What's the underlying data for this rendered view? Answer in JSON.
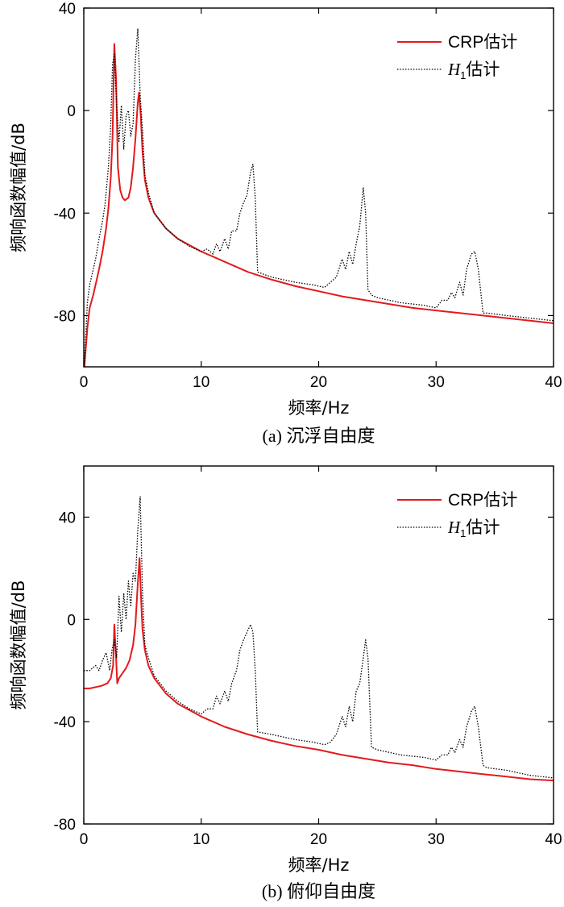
{
  "chart_data": [
    {
      "type": "line",
      "caption": "(a) 沉浮自由度",
      "xlabel": "频率/Hz",
      "ylabel": "频响函数幅值/dB",
      "xlim": [
        0,
        40
      ],
      "ylim": [
        -100,
        40
      ],
      "xticks": [
        0,
        10,
        20,
        30,
        40
      ],
      "yticks": [
        -80,
        -40,
        0,
        40
      ],
      "legend": "top-right",
      "series": [
        {
          "name": "CRP估计",
          "color": "#e31a1c",
          "style": "solid",
          "x": [
            0.05,
            0.3,
            0.5,
            0.8,
            1.0,
            1.3,
            1.6,
            1.9,
            2.1,
            2.3,
            2.45,
            2.6,
            2.75,
            2.9,
            3.1,
            3.3,
            3.5,
            3.8,
            4.0,
            4.2,
            4.4,
            4.6,
            4.7,
            4.85,
            5.0,
            5.2,
            5.5,
            6.0,
            7.0,
            8.0,
            10.0,
            12.0,
            14.0,
            16.0,
            18.0,
            20.0,
            22.0,
            24.0,
            26.0,
            28.0,
            30.0,
            32.0,
            34.0,
            36.0,
            38.0,
            40.0
          ],
          "y": [
            -100,
            -85,
            -77,
            -72,
            -68,
            -62,
            -55,
            -46,
            -38,
            -26,
            -10,
            26,
            12,
            -22,
            -31,
            -34,
            -35,
            -34,
            -30,
            -22,
            -11,
            3,
            7,
            -2,
            -16,
            -27,
            -34,
            -40,
            -46,
            -50,
            -55,
            -59,
            -63,
            -66,
            -68.5,
            -70.5,
            -72.5,
            -74,
            -75.5,
            -77,
            -78,
            -79,
            -80,
            -81,
            -82,
            -83
          ]
        },
        {
          "name": "H1估计",
          "color": "#000000",
          "style": "dotted",
          "x": [
            0.05,
            0.3,
            0.5,
            0.8,
            1.0,
            1.3,
            1.6,
            1.8,
            2.1,
            2.3,
            2.45,
            2.6,
            2.8,
            3.0,
            3.2,
            3.4,
            3.6,
            3.8,
            4.0,
            4.2,
            4.4,
            4.6,
            4.8,
            5.0,
            5.2,
            5.5,
            6.0,
            7.0,
            8.0,
            9.0,
            10.0,
            10.5,
            11.0,
            11.3,
            11.6,
            12.0,
            12.3,
            12.6,
            13.0,
            13.3,
            13.6,
            13.9,
            14.2,
            14.4,
            14.6,
            14.8,
            16.0,
            18.0,
            19.5,
            20.5,
            21.0,
            21.5,
            22.0,
            22.3,
            22.6,
            22.9,
            23.2,
            23.5,
            23.8,
            24.0,
            24.2,
            24.5,
            25.0,
            27.0,
            29.0,
            30.0,
            30.5,
            31.0,
            31.3,
            31.6,
            32.0,
            32.3,
            32.6,
            33.0,
            33.3,
            33.6,
            34.0,
            34.3,
            36.0,
            38.0,
            40.0
          ],
          "y": [
            -100,
            -75,
            -68,
            -62,
            -58,
            -50,
            -43,
            -37,
            -22,
            -5,
            18,
            22,
            2,
            -12,
            2,
            -15,
            -2,
            0,
            -10,
            -5,
            20,
            32,
            6,
            -8,
            -25,
            -32,
            -40,
            -46,
            -50,
            -53,
            -55,
            -54,
            -56,
            -52,
            -55,
            -50,
            -54,
            -47,
            -47,
            -40,
            -36,
            -33,
            -24,
            -21,
            -34,
            -63,
            -65,
            -67,
            -68,
            -69,
            -67,
            -65,
            -58,
            -62,
            -55,
            -60,
            -52,
            -45,
            -30,
            -40,
            -70,
            -72,
            -73,
            -75,
            -76,
            -77,
            -74,
            -74,
            -71,
            -73,
            -67,
            -72,
            -62,
            -56,
            -55,
            -62,
            -79,
            -79,
            -80,
            -81,
            -82
          ]
        }
      ]
    },
    {
      "type": "line",
      "caption": "(b) 俯仰自由度",
      "xlabel": "频率/Hz",
      "ylabel": "频响函数幅值/dB",
      "xlim": [
        0,
        40
      ],
      "ylim": [
        -80,
        60
      ],
      "xticks": [
        0,
        10,
        20,
        30,
        40
      ],
      "yticks": [
        -80,
        -40,
        0,
        40
      ],
      "legend": "top-right",
      "series": [
        {
          "name": "CRP估计",
          "color": "#e31a1c",
          "style": "solid",
          "x": [
            0.0,
            0.5,
            1.0,
            1.5,
            2.0,
            2.3,
            2.5,
            2.6,
            2.75,
            2.85,
            3.0,
            3.3,
            3.6,
            3.9,
            4.2,
            4.4,
            4.6,
            4.75,
            4.9,
            5.0,
            5.2,
            5.5,
            6.0,
            7.0,
            8.0,
            10.0,
            12.0,
            14.0,
            16.0,
            18.0,
            20.0,
            22.0,
            24.0,
            26.0,
            28.0,
            30.0,
            32.0,
            34.0,
            36.0,
            38.0,
            40.0
          ],
          "y": [
            -27,
            -27,
            -26.5,
            -26,
            -25,
            -23,
            -18,
            -2,
            -15,
            -25,
            -23,
            -21,
            -19,
            -16,
            -10,
            -2,
            14,
            24,
            6,
            -4,
            -12,
            -18,
            -23,
            -29,
            -33,
            -38,
            -42,
            -45,
            -47.5,
            -49.5,
            -51,
            -53,
            -54.5,
            -56,
            -57,
            -58.5,
            -59.5,
            -60.5,
            -61.5,
            -62.5,
            -63
          ]
        },
        {
          "name": "H1估计",
          "color": "#000000",
          "style": "dotted",
          "x": [
            0.0,
            0.5,
            1.0,
            1.3,
            1.6,
            1.9,
            2.2,
            2.4,
            2.6,
            2.8,
            3.0,
            3.2,
            3.4,
            3.6,
            3.8,
            4.0,
            4.2,
            4.4,
            4.6,
            4.8,
            5.0,
            5.2,
            5.5,
            6.0,
            7.0,
            8.0,
            9.0,
            10.0,
            10.5,
            11.0,
            11.3,
            11.6,
            12.0,
            12.3,
            12.6,
            13.0,
            13.3,
            13.6,
            13.9,
            14.2,
            14.4,
            14.6,
            14.8,
            16.0,
            18.0,
            19.5,
            20.5,
            21.0,
            21.5,
            22.0,
            22.3,
            22.6,
            22.9,
            23.2,
            23.5,
            23.8,
            24.0,
            24.2,
            24.5,
            25.0,
            27.0,
            29.0,
            30.0,
            30.5,
            31.0,
            31.3,
            31.6,
            32.0,
            32.3,
            32.6,
            33.0,
            33.3,
            33.6,
            34.0,
            34.3,
            36.0,
            38.0,
            40.0
          ],
          "y": [
            -20,
            -20,
            -18,
            -20,
            -16,
            -13,
            -20,
            -12,
            -8,
            -15,
            9,
            -5,
            10,
            0,
            15,
            5,
            18,
            15,
            35,
            48,
            10,
            -10,
            -15,
            -22,
            -28,
            -32,
            -35,
            -37,
            -35,
            -35,
            -30,
            -33,
            -28,
            -32,
            -25,
            -20,
            -12,
            -8,
            -5,
            -2,
            -5,
            -20,
            -44,
            -45,
            -47,
            -48,
            -49,
            -48,
            -45,
            -38,
            -42,
            -34,
            -40,
            -28,
            -25,
            -15,
            -8,
            -15,
            -50,
            -51,
            -53,
            -54,
            -55,
            -53,
            -53,
            -50,
            -52,
            -47,
            -50,
            -42,
            -36,
            -34,
            -42,
            -57,
            -58,
            -59,
            -61,
            -62
          ]
        }
      ]
    }
  ]
}
